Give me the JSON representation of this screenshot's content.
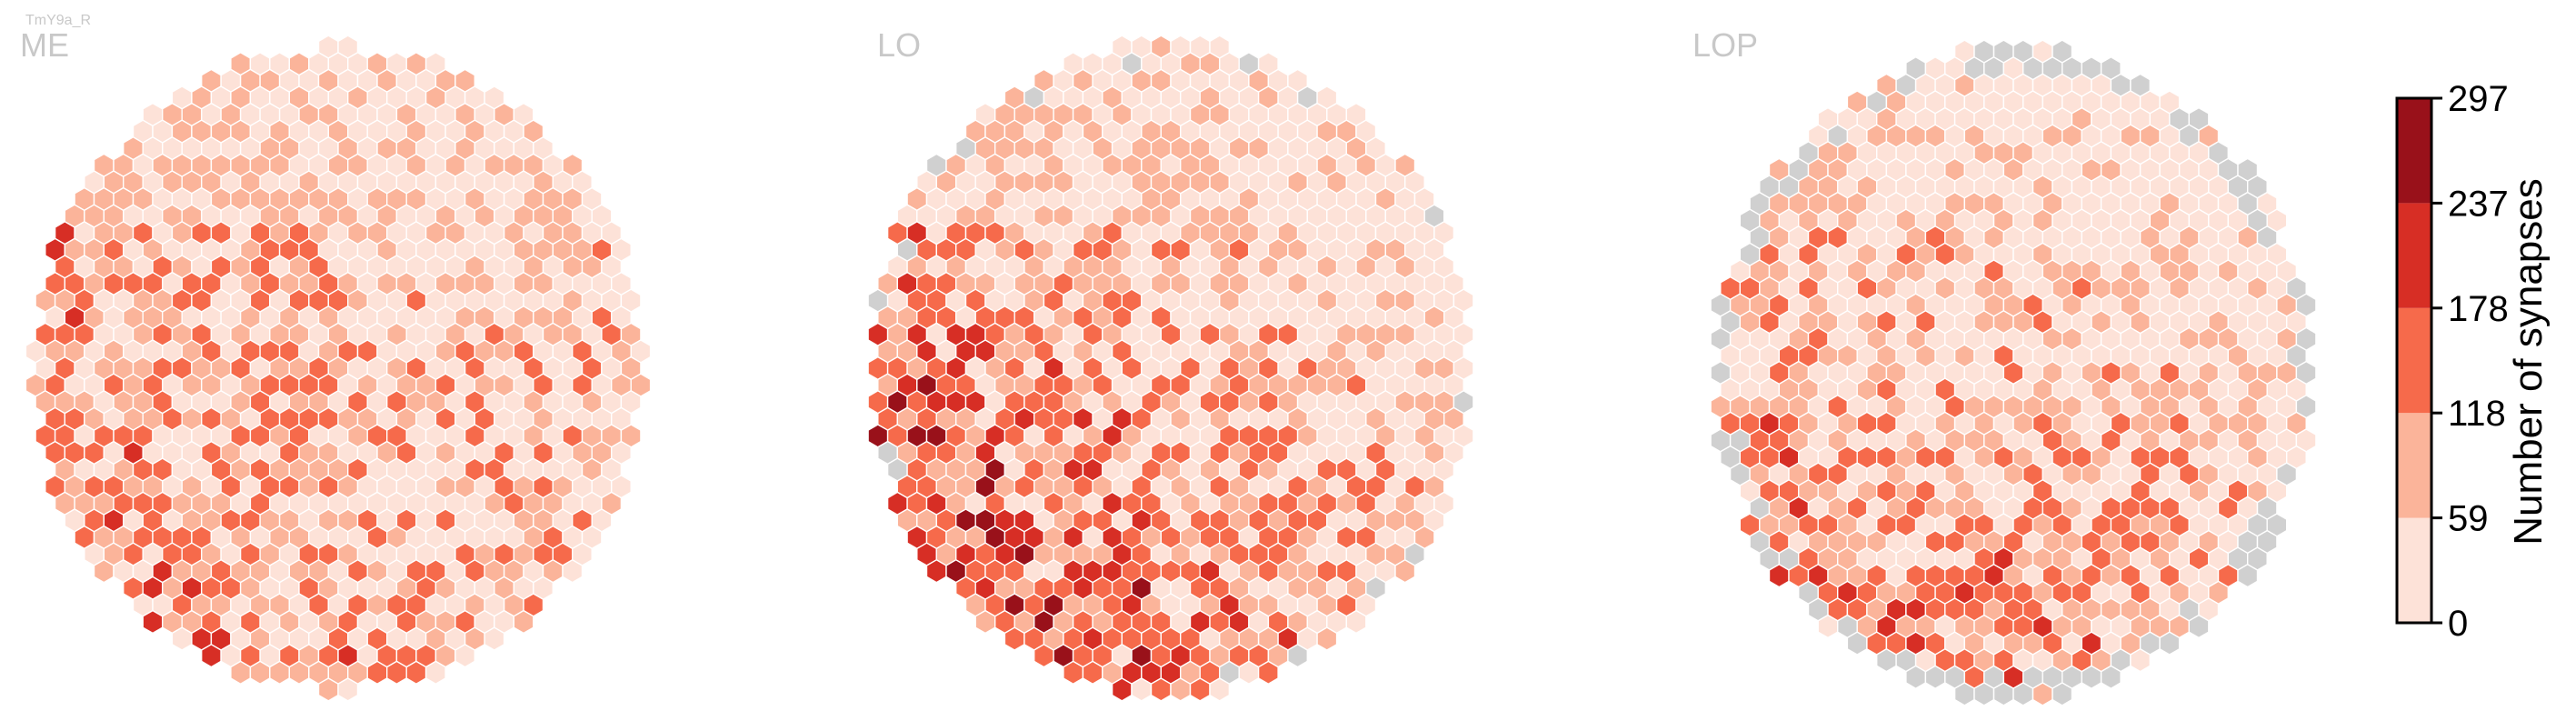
{
  "cell_type": "TmY9a_R",
  "panels": [
    {
      "label": "ME"
    },
    {
      "label": "LO"
    },
    {
      "label": "LOP"
    }
  ],
  "colorbar": {
    "title": "Number of synapses",
    "ticks": [
      "0",
      "59",
      "118",
      "178",
      "237",
      "297"
    ],
    "colors": [
      "#fde2d8",
      "#fbb49a",
      "#f66a4b",
      "#d72e25",
      "#99111a"
    ]
  },
  "chart_data": {
    "type": "heatmap",
    "description_of_encoding": "hexagonal columns, color = number of synapses",
    "value_range": [
      0,
      297
    ],
    "bins": [
      0,
      59,
      118,
      178,
      237,
      297
    ],
    "bin_colors": [
      "#fde2d8",
      "#fbb49a",
      "#f66a4b",
      "#d72e25",
      "#99111a"
    ],
    "missing_color": "#d0d0d0",
    "panels": [
      "ME",
      "LO",
      "LOP"
    ]
  }
}
